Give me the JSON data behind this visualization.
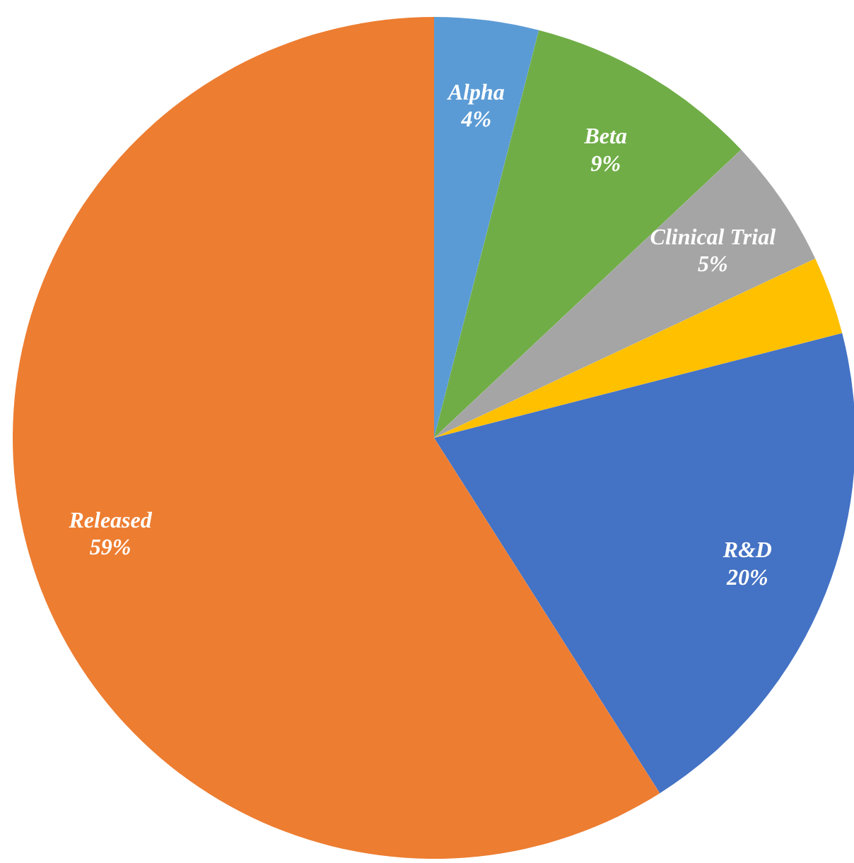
{
  "chart_data": {
    "type": "pie",
    "categories": [
      "Alpha",
      "Beta",
      "Clinical Trial",
      null,
      "R&D",
      "Released"
    ],
    "values": [
      4,
      9,
      5,
      3,
      20,
      59
    ],
    "value_labels": [
      "4%",
      "9%",
      "5%",
      null,
      "20%",
      "59%"
    ],
    "colors": [
      "#5b9bd5",
      "#70ad47",
      "#a5a5a5",
      "#ffc000",
      "#4472c4",
      "#ed7d31"
    ]
  }
}
